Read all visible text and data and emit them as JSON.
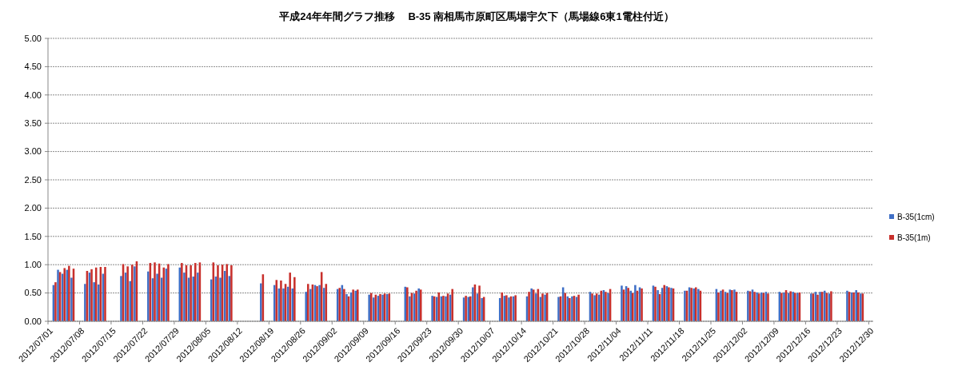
{
  "chart_data": {
    "type": "bar",
    "title": "平成24年年間グラフ推移　 B-35 南相馬市原町区馬場宇欠下（馬場線6東1電柱付近）",
    "x": [
      "2012-07-02",
      "2012-07-03",
      "2012-07-04",
      "2012-07-05",
      "2012-07-06",
      "2012-07-09",
      "2012-07-10",
      "2012-07-11",
      "2012-07-12",
      "2012-07-13",
      "2012-07-17",
      "2012-07-18",
      "2012-07-19",
      "2012-07-20",
      "2012-07-23",
      "2012-07-24",
      "2012-07-25",
      "2012-07-26",
      "2012-07-27",
      "2012-07-30",
      "2012-07-31",
      "2012-08-01",
      "2012-08-02",
      "2012-08-03",
      "2012-08-06",
      "2012-08-07",
      "2012-08-08",
      "2012-08-09",
      "2012-08-10",
      "2012-08-17",
      "2012-08-20",
      "2012-08-21",
      "2012-08-22",
      "2012-08-23",
      "2012-08-24",
      "2012-08-27",
      "2012-08-28",
      "2012-08-29",
      "2012-08-30",
      "2012-08-31",
      "2012-09-03",
      "2012-09-04",
      "2012-09-05",
      "2012-09-06",
      "2012-09-07",
      "2012-09-10",
      "2012-09-11",
      "2012-09-12",
      "2012-09-13",
      "2012-09-14",
      "2012-09-18",
      "2012-09-19",
      "2012-09-20",
      "2012-09-21",
      "2012-09-24",
      "2012-09-25",
      "2012-09-26",
      "2012-09-27",
      "2012-09-28",
      "2012-10-01",
      "2012-10-02",
      "2012-10-03",
      "2012-10-04",
      "2012-10-05",
      "2012-10-09",
      "2012-10-10",
      "2012-10-11",
      "2012-10-12",
      "2012-10-15",
      "2012-10-16",
      "2012-10-17",
      "2012-10-18",
      "2012-10-19",
      "2012-10-22",
      "2012-10-23",
      "2012-10-24",
      "2012-10-25",
      "2012-10-26",
      "2012-10-29",
      "2012-10-30",
      "2012-10-31",
      "2012-11-01",
      "2012-11-02",
      "2012-11-05",
      "2012-11-06",
      "2012-11-07",
      "2012-11-08",
      "2012-11-09",
      "2012-11-12",
      "2012-11-13",
      "2012-11-14",
      "2012-11-15",
      "2012-11-16",
      "2012-11-19",
      "2012-11-20",
      "2012-11-21",
      "2012-11-22",
      "2012-11-26",
      "2012-11-27",
      "2012-11-28",
      "2012-11-29",
      "2012-11-30",
      "2012-12-03",
      "2012-12-04",
      "2012-12-05",
      "2012-12-06",
      "2012-12-07",
      "2012-12-10",
      "2012-12-11",
      "2012-12-12",
      "2012-12-13",
      "2012-12-14",
      "2012-12-17",
      "2012-12-18",
      "2012-12-19",
      "2012-12-20",
      "2012-12-21",
      "2012-12-25",
      "2012-12-26",
      "2012-12-27",
      "2012-12-28"
    ],
    "series": [
      {
        "name": "B-35(1cm)",
        "color": "#3f6fc6",
        "values": [
          0.64,
          0.91,
          0.84,
          0.91,
          0.77,
          0.66,
          0.86,
          0.69,
          0.65,
          0.84,
          0.8,
          0.86,
          0.71,
          0.97,
          0.88,
          0.76,
          0.84,
          0.77,
          0.93,
          0.95,
          0.86,
          0.77,
          0.79,
          0.86,
          0.74,
          0.79,
          0.77,
          0.89,
          0.8,
          0.67,
          0.64,
          0.58,
          0.58,
          0.61,
          0.58,
          0.52,
          0.57,
          0.64,
          0.64,
          0.59,
          0.57,
          0.64,
          0.48,
          0.51,
          0.54,
          0.47,
          0.42,
          0.45,
          0.47,
          0.48,
          0.61,
          0.44,
          0.49,
          0.58,
          0.45,
          0.43,
          0.44,
          0.44,
          0.47,
          0.42,
          0.43,
          0.6,
          0.49,
          0.41,
          0.41,
          0.45,
          0.42,
          0.44,
          0.44,
          0.58,
          0.49,
          0.43,
          0.47,
          0.43,
          0.6,
          0.44,
          0.44,
          0.43,
          0.52,
          0.46,
          0.47,
          0.55,
          0.5,
          0.63,
          0.62,
          0.54,
          0.64,
          0.6,
          0.63,
          0.55,
          0.59,
          0.62,
          0.59,
          0.54,
          0.6,
          0.58,
          0.57,
          0.57,
          0.54,
          0.52,
          0.56,
          0.56,
          0.54,
          0.56,
          0.51,
          0.51,
          0.52,
          0.52,
          0.51,
          0.5,
          0.52,
          0.5,
          0.49,
          0.52,
          0.52,
          0.54,
          0.49,
          0.54,
          0.51,
          0.55,
          0.49
        ]
      },
      {
        "name": "B-35(1m)",
        "color": "#c8302c",
        "values": [
          0.69,
          0.87,
          0.94,
          0.98,
          0.93,
          0.89,
          0.92,
          0.95,
          0.96,
          0.96,
          1.01,
          0.97,
          1.0,
          1.06,
          1.03,
          1.04,
          1.02,
          0.95,
          1.01,
          1.03,
          0.99,
          0.99,
          1.03,
          1.04,
          1.04,
          0.99,
          1.0,
          1.01,
          0.99,
          0.83,
          0.73,
          0.72,
          0.66,
          0.86,
          0.78,
          0.66,
          0.65,
          0.62,
          0.87,
          0.66,
          0.59,
          0.57,
          0.44,
          0.56,
          0.56,
          0.5,
          0.47,
          0.48,
          0.49,
          0.49,
          0.6,
          0.5,
          0.54,
          0.56,
          0.44,
          0.51,
          0.45,
          0.49,
          0.57,
          0.45,
          0.44,
          0.65,
          0.63,
          0.43,
          0.51,
          0.46,
          0.44,
          0.46,
          0.52,
          0.56,
          0.57,
          0.49,
          0.5,
          0.44,
          0.5,
          0.41,
          0.45,
          0.47,
          0.49,
          0.49,
          0.54,
          0.52,
          0.57,
          0.56,
          0.59,
          0.5,
          0.54,
          0.58,
          0.61,
          0.48,
          0.64,
          0.6,
          0.58,
          0.54,
          0.59,
          0.6,
          0.54,
          0.51,
          0.56,
          0.5,
          0.55,
          0.52,
          0.53,
          0.52,
          0.49,
          0.5,
          0.49,
          0.5,
          0.55,
          0.53,
          0.5,
          0.51,
          0.49,
          0.47,
          0.52,
          0.5,
          0.53,
          0.52,
          0.51,
          0.51,
          0.49
        ]
      }
    ],
    "xlim": [
      "2012-07-01",
      "2012-12-31"
    ],
    "xticks": [
      {
        "value": "2012-07-01",
        "label": "2012/07/01"
      },
      {
        "value": "2012-07-08",
        "label": "2012/07/08"
      },
      {
        "value": "2012-07-15",
        "label": "2012/07/15"
      },
      {
        "value": "2012-07-22",
        "label": "2012/07/22"
      },
      {
        "value": "2012-07-29",
        "label": "2012/07/29"
      },
      {
        "value": "2012-08-05",
        "label": "2012/08/05"
      },
      {
        "value": "2012-08-12",
        "label": "2012/08/12"
      },
      {
        "value": "2012-08-19",
        "label": "2012/08/19"
      },
      {
        "value": "2012-08-26",
        "label": "2012/08/26"
      },
      {
        "value": "2012-09-02",
        "label": "2012/09/02"
      },
      {
        "value": "2012-09-09",
        "label": "2012/09/09"
      },
      {
        "value": "2012-09-16",
        "label": "2012/09/16"
      },
      {
        "value": "2012-09-23",
        "label": "2012/09/23"
      },
      {
        "value": "2012-09-30",
        "label": "2012/09/30"
      },
      {
        "value": "2012-10-07",
        "label": "2012/10/07"
      },
      {
        "value": "2012-10-14",
        "label": "2012/10/14"
      },
      {
        "value": "2012-10-21",
        "label": "2012/10/21"
      },
      {
        "value": "2012-10-28",
        "label": "2012/10/28"
      },
      {
        "value": "2012-11-04",
        "label": "2012/11/04"
      },
      {
        "value": "2012-11-11",
        "label": "2012/11/11"
      },
      {
        "value": "2012-11-18",
        "label": "2012/11/18"
      },
      {
        "value": "2012-11-25",
        "label": "2012/11/25"
      },
      {
        "value": "2012-12-02",
        "label": "2012/12/02"
      },
      {
        "value": "2012-12-09",
        "label": "2012/12/09"
      },
      {
        "value": "2012-12-16",
        "label": "2012/12/16"
      },
      {
        "value": "2012-12-23",
        "label": "2012/12/23"
      },
      {
        "value": "2012-12-30",
        "label": "2012/12/30"
      }
    ],
    "ylim": [
      0,
      5
    ],
    "yticks": [
      {
        "value": 0,
        "label": "0.00"
      },
      {
        "value": 0.5,
        "label": "0.50"
      },
      {
        "value": 1,
        "label": "1.00"
      },
      {
        "value": 1.5,
        "label": "1.50"
      },
      {
        "value": 2,
        "label": "2.00"
      },
      {
        "value": 2.5,
        "label": "2.50"
      },
      {
        "value": 3,
        "label": "3.00"
      },
      {
        "value": 3.5,
        "label": "3.50"
      },
      {
        "value": 4,
        "label": "4.00"
      },
      {
        "value": 4.5,
        "label": "4.50"
      },
      {
        "value": 5,
        "label": "5.00"
      }
    ],
    "grid": "y",
    "legend": "right"
  }
}
